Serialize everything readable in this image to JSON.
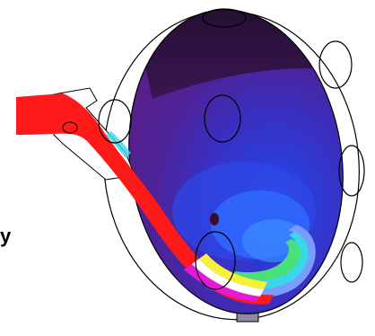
{
  "figure": {
    "description_visible_text": {
      "edge_glyph": "y"
    },
    "colors": {
      "inflow_jet": "#ff1a1a",
      "chamber_base": "#5a1f86",
      "chamber_dark_top": "#2b0f3c",
      "mid_blue": "#3b3bd0",
      "bright_blue": "#2f6bff",
      "cyan": "#39d7e8",
      "green": "#49e07a",
      "yellow": "#f7ef3a",
      "magenta": "#e51ad6",
      "outline": "#000000"
    },
    "icons": [
      "hole-circle-icon",
      "pipe-inlet-icon"
    ]
  }
}
